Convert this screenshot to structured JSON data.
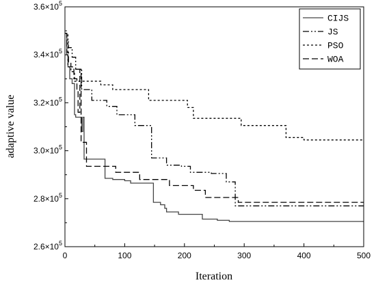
{
  "chart_data": {
    "type": "line",
    "xlabel": "Iteration",
    "ylabel": "adaptive value",
    "xlim": [
      0,
      500
    ],
    "ylim": [
      260000,
      360000
    ],
    "x_ticks": [
      0,
      100,
      200,
      300,
      400,
      500
    ],
    "y_ticks": [
      260000,
      280000,
      300000,
      320000,
      340000,
      360000
    ],
    "y_tick_labels": [
      {
        "mantissa": "2.6",
        "base": "×10",
        "exp": "5"
      },
      {
        "mantissa": "2.8",
        "base": "×10",
        "exp": "5"
      },
      {
        "mantissa": "3.0",
        "base": "×10",
        "exp": "5"
      },
      {
        "mantissa": "3.2",
        "base": "×10",
        "exp": "5"
      },
      {
        "mantissa": "3.4",
        "base": "×10",
        "exp": "5"
      },
      {
        "mantissa": "3.6",
        "base": "×10",
        "exp": "5"
      }
    ],
    "grid": false,
    "legend_position": "top-right",
    "series": [
      {
        "name": "CIJS",
        "dash": "solid",
        "points": [
          [
            0,
            349000
          ],
          [
            3,
            349000
          ],
          [
            3,
            340000
          ],
          [
            5,
            340000
          ],
          [
            5,
            335000
          ],
          [
            8,
            335000
          ],
          [
            8,
            330000
          ],
          [
            12,
            330000
          ],
          [
            12,
            328000
          ],
          [
            16,
            328000
          ],
          [
            16,
            315000
          ],
          [
            18,
            315000
          ],
          [
            18,
            314000
          ],
          [
            28,
            314000
          ],
          [
            28,
            308000
          ],
          [
            30,
            308000
          ],
          [
            30,
            314000
          ],
          [
            32,
            314000
          ],
          [
            32,
            296500
          ],
          [
            67,
            296500
          ],
          [
            67,
            288500
          ],
          [
            80,
            288500
          ],
          [
            80,
            288000
          ],
          [
            100,
            288000
          ],
          [
            100,
            287500
          ],
          [
            110,
            287500
          ],
          [
            110,
            286500
          ],
          [
            148,
            286500
          ],
          [
            148,
            278500
          ],
          [
            160,
            278500
          ],
          [
            160,
            277500
          ],
          [
            167,
            277500
          ],
          [
            167,
            276000
          ],
          [
            170,
            276000
          ],
          [
            170,
            274500
          ],
          [
            190,
            274500
          ],
          [
            190,
            273500
          ],
          [
            230,
            273500
          ],
          [
            230,
            271500
          ],
          [
            255,
            271500
          ],
          [
            255,
            271000
          ],
          [
            275,
            271000
          ],
          [
            275,
            270500
          ],
          [
            500,
            270500
          ]
        ]
      },
      {
        "name": "JS",
        "dash": "dashdotdot",
        "points": [
          [
            0,
            349000
          ],
          [
            3,
            349000
          ],
          [
            3,
            346000
          ],
          [
            6,
            346000
          ],
          [
            6,
            343000
          ],
          [
            12,
            343000
          ],
          [
            12,
            339000
          ],
          [
            18,
            339000
          ],
          [
            18,
            334000
          ],
          [
            28,
            334000
          ],
          [
            28,
            325500
          ],
          [
            45,
            325500
          ],
          [
            45,
            321000
          ],
          [
            70,
            321000
          ],
          [
            70,
            318500
          ],
          [
            87,
            318500
          ],
          [
            87,
            315000
          ],
          [
            117,
            315000
          ],
          [
            117,
            310500
          ],
          [
            145,
            310500
          ],
          [
            145,
            297000
          ],
          [
            170,
            297000
          ],
          [
            170,
            294000
          ],
          [
            195,
            294000
          ],
          [
            195,
            293500
          ],
          [
            210,
            293500
          ],
          [
            210,
            291000
          ],
          [
            245,
            291000
          ],
          [
            245,
            290500
          ],
          [
            270,
            290500
          ],
          [
            270,
            287000
          ],
          [
            285,
            287000
          ],
          [
            285,
            277000
          ],
          [
            500,
            277000
          ]
        ]
      },
      {
        "name": "PSO",
        "dash": "dotted",
        "points": [
          [
            0,
            349000
          ],
          [
            5,
            349000
          ],
          [
            5,
            335000
          ],
          [
            10,
            335000
          ],
          [
            10,
            333000
          ],
          [
            16,
            333000
          ],
          [
            16,
            329000
          ],
          [
            60,
            329000
          ],
          [
            60,
            327500
          ],
          [
            80,
            327500
          ],
          [
            80,
            325500
          ],
          [
            140,
            325500
          ],
          [
            140,
            321000
          ],
          [
            205,
            321000
          ],
          [
            205,
            318000
          ],
          [
            215,
            318000
          ],
          [
            215,
            313500
          ],
          [
            295,
            313500
          ],
          [
            295,
            310500
          ],
          [
            370,
            310500
          ],
          [
            370,
            305500
          ],
          [
            400,
            305500
          ],
          [
            400,
            304500
          ],
          [
            500,
            304500
          ]
        ]
      },
      {
        "name": "WOA",
        "dash": "dashed",
        "points": [
          [
            0,
            349000
          ],
          [
            3,
            349000
          ],
          [
            3,
            341000
          ],
          [
            6,
            341000
          ],
          [
            6,
            337000
          ],
          [
            10,
            337000
          ],
          [
            10,
            335000
          ],
          [
            15,
            335000
          ],
          [
            15,
            330000
          ],
          [
            20,
            330000
          ],
          [
            20,
            325000
          ],
          [
            22,
            325000
          ],
          [
            22,
            316000
          ],
          [
            25,
            316000
          ],
          [
            25,
            334000
          ],
          [
            27,
            334000
          ],
          [
            27,
            303500
          ],
          [
            36,
            303500
          ],
          [
            36,
            293500
          ],
          [
            85,
            293500
          ],
          [
            85,
            291000
          ],
          [
            125,
            291000
          ],
          [
            125,
            288000
          ],
          [
            175,
            288000
          ],
          [
            175,
            285500
          ],
          [
            215,
            285500
          ],
          [
            215,
            283500
          ],
          [
            235,
            283500
          ],
          [
            235,
            280500
          ],
          [
            290,
            280500
          ],
          [
            290,
            278500
          ],
          [
            500,
            278500
          ]
        ]
      }
    ]
  }
}
